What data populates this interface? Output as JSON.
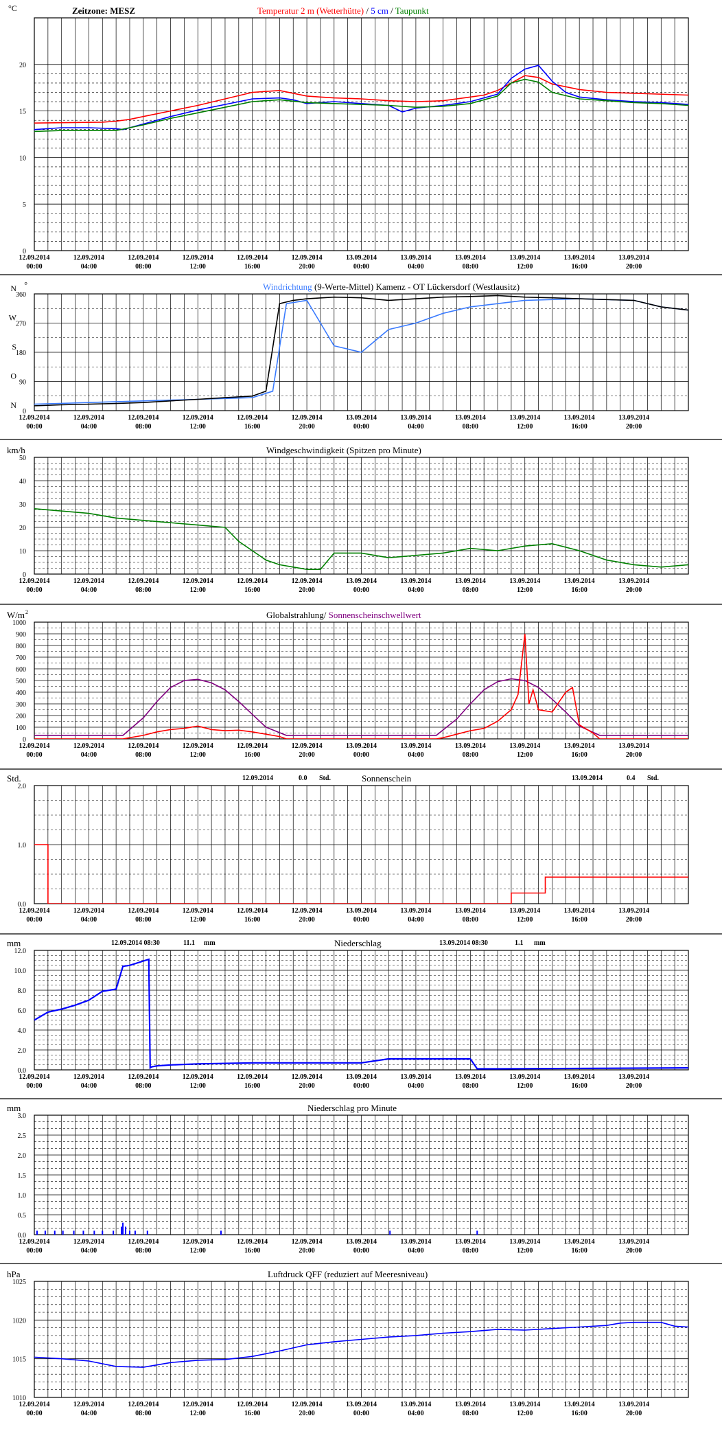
{
  "x_ticks": [
    [
      "12.09.2014",
      "00:00"
    ],
    [
      "12.09.2014",
      "04:00"
    ],
    [
      "12.09.2014",
      "08:00"
    ],
    [
      "12.09.2014",
      "12:00"
    ],
    [
      "12.09.2014",
      "16:00"
    ],
    [
      "12.09.2014",
      "20:00"
    ],
    [
      "13.09.2014",
      "00:00"
    ],
    [
      "13.09.2014",
      "04:00"
    ],
    [
      "13.09.2014",
      "08:00"
    ],
    [
      "13.09.2014",
      "12:00"
    ],
    [
      "13.09.2014",
      "16:00"
    ],
    [
      "13.09.2014",
      "20:00"
    ]
  ],
  "colors": {
    "red": "#ff0000",
    "blue": "#0000ff",
    "lightblue": "#3a7bff",
    "green": "#008000",
    "purple": "#800080",
    "black": "#000000",
    "frame": "#000000"
  },
  "chart_data": [
    {
      "id": "temp",
      "type": "line",
      "y_unit": "°C",
      "ylim": [
        0,
        25
      ],
      "yticks": [
        0,
        5,
        10,
        15,
        20
      ],
      "header": [
        {
          "text": "Zeitzone: MESZ",
          "color": "#000000"
        }
      ],
      "title_parts": [
        {
          "text": "Temperatur 2 m (Wetterhütte)",
          "color": "#ff0000"
        },
        {
          "text": "  /  ",
          "color": "#000000"
        },
        {
          "text": "5 cm",
          "color": "#0000ff"
        },
        {
          "text": " / ",
          "color": "#000000"
        },
        {
          "text": "Taupunkt",
          "color": "#008000"
        }
      ],
      "series": [
        {
          "name": "Temperatur 2 m (Wetterhütte)",
          "color": "#ff0000",
          "x": [
            0,
            5,
            6,
            7,
            8,
            10,
            12,
            14,
            16,
            18,
            20,
            21,
            22,
            24,
            26,
            28,
            30,
            32,
            33,
            34,
            36,
            37,
            38,
            40,
            42,
            48
          ],
          "y": [
            13.7,
            13.8,
            13.9,
            14.1,
            14.4,
            15.0,
            15.6,
            16.3,
            17.0,
            17.2,
            16.6,
            16.5,
            16.4,
            16.3,
            16.1,
            16.0,
            16.1,
            16.5,
            16.7,
            17.2,
            18.8,
            18.6,
            17.9,
            17.3,
            17.0,
            16.7
          ]
        },
        {
          "name": "5 cm",
          "color": "#0000ff",
          "x": [
            0,
            2,
            4,
            6,
            6.5,
            8,
            10,
            12,
            14,
            16,
            18,
            19,
            20,
            22,
            24,
            26,
            27,
            28,
            30,
            32,
            34,
            35,
            36,
            37,
            38,
            39,
            40,
            42,
            44,
            46,
            48
          ],
          "y": [
            13.0,
            13.2,
            13.2,
            13.1,
            13.0,
            13.6,
            14.4,
            15.1,
            15.7,
            16.3,
            16.4,
            16.2,
            15.8,
            16.0,
            15.8,
            15.6,
            14.9,
            15.3,
            15.6,
            16.0,
            16.8,
            18.5,
            19.5,
            19.9,
            18.2,
            17.0,
            16.5,
            16.2,
            16.0,
            15.9,
            15.7
          ]
        },
        {
          "name": "Taupunkt",
          "color": "#008000",
          "x": [
            0,
            2,
            4,
            6,
            8,
            10,
            12,
            14,
            16,
            18,
            20,
            22,
            24,
            26,
            28,
            30,
            32,
            34,
            35,
            36,
            37,
            38,
            40,
            42,
            44,
            46,
            48
          ],
          "y": [
            12.8,
            12.9,
            12.9,
            12.9,
            13.5,
            14.2,
            14.8,
            15.4,
            16.0,
            16.2,
            15.9,
            15.8,
            15.7,
            15.6,
            15.4,
            15.5,
            15.8,
            16.6,
            18.0,
            18.4,
            18.1,
            17.0,
            16.3,
            16.1,
            15.9,
            15.8,
            15.6
          ]
        }
      ]
    },
    {
      "id": "winddir",
      "type": "line",
      "y_unit": "N",
      "ylim": [
        0,
        360
      ],
      "yticks": [
        0,
        90,
        180,
        270,
        360
      ],
      "ytick_letters": [
        {
          "v": 0,
          "t": "N"
        },
        {
          "v": 90,
          "t": "O"
        },
        {
          "v": 180,
          "t": "S"
        },
        {
          "v": 270,
          "t": "W"
        },
        {
          "v": 360,
          "t": "N"
        }
      ],
      "title_parts": [
        {
          "text": "Windrichtung",
          "color": "#3a7bff"
        },
        {
          "text": " (9-Werte-Mittel)",
          "color": "#000000"
        },
        {
          "text": "       Kamenz - OT Lückersdorf (Westlausitz)",
          "color": "#000000"
        }
      ],
      "series": [
        {
          "name": "Windrichtung",
          "color": "#3a7bff",
          "x": [
            0,
            4,
            8,
            12,
            16,
            17.5,
            18.5,
            20,
            22,
            24,
            26,
            28,
            30,
            32,
            34,
            36,
            40,
            44,
            46,
            48
          ],
          "y": [
            20,
            25,
            30,
            35,
            40,
            60,
            330,
            340,
            200,
            180,
            250,
            270,
            300,
            320,
            330,
            340,
            345,
            340,
            320,
            310
          ]
        },
        {
          "name": "9-Werte-Mittel",
          "color": "#000000",
          "x": [
            0,
            2,
            4,
            6,
            8,
            10,
            12,
            14,
            16,
            17,
            18,
            19,
            20,
            22,
            24,
            26,
            28,
            30,
            32,
            34,
            36,
            38,
            40,
            44,
            46,
            48
          ],
          "y": [
            15,
            18,
            20,
            22,
            25,
            30,
            35,
            40,
            45,
            60,
            330,
            340,
            345,
            350,
            348,
            340,
            345,
            350,
            352,
            355,
            350,
            348,
            345,
            340,
            320,
            310
          ]
        }
      ]
    },
    {
      "id": "wind",
      "type": "line",
      "y_unit": "km/h",
      "ylim": [
        0,
        50
      ],
      "yticks": [
        0,
        10,
        20,
        30,
        40,
        50
      ],
      "title_parts": [
        {
          "text": "Windgeschwindigkeit (Spitzen pro Minute)",
          "color": "#000000"
        }
      ],
      "series": [
        {
          "name": "Windgeschwindigkeit",
          "color": "#008000",
          "x": [
            0,
            2,
            4,
            6,
            8,
            10,
            12,
            14,
            15,
            16,
            17,
            18,
            19,
            20,
            21,
            22,
            24,
            26,
            28,
            30,
            32,
            34,
            36,
            38,
            40,
            42,
            44,
            46,
            48
          ],
          "y": [
            28,
            27,
            26,
            24,
            23,
            22,
            21,
            20,
            14,
            10,
            6,
            4,
            3,
            2,
            2,
            9,
            9,
            7,
            8,
            9,
            11,
            10,
            12,
            13,
            10,
            6,
            4,
            3,
            4
          ]
        }
      ]
    },
    {
      "id": "radiation",
      "type": "line",
      "y_unit": "W/m²",
      "ylim": [
        0,
        1000
      ],
      "yticks": [
        0,
        100,
        200,
        300,
        400,
        500,
        600,
        700,
        800,
        900,
        1000
      ],
      "title_parts": [
        {
          "text": "Globalstrahlung/",
          "color": "#000000"
        },
        {
          "text": " Sonnenscheinschwellwert",
          "color": "#800080"
        }
      ],
      "series": [
        {
          "name": "Sonnenscheinschwellwert",
          "color": "#800080",
          "x": [
            0,
            6.5,
            8,
            9,
            10,
            11,
            12,
            13,
            14,
            15,
            16,
            17,
            18.5,
            29.5,
            31,
            32,
            33,
            34,
            35,
            36,
            37,
            38,
            39,
            40,
            41.5,
            48
          ],
          "y": [
            30,
            30,
            180,
            320,
            440,
            500,
            510,
            480,
            420,
            320,
            210,
            100,
            30,
            30,
            170,
            300,
            420,
            490,
            515,
            500,
            440,
            340,
            230,
            110,
            30,
            30
          ]
        },
        {
          "name": "Globalstrahlung",
          "color": "#ff0000",
          "x": [
            0,
            6.5,
            7,
            8,
            9,
            10,
            11,
            12,
            13,
            14,
            15,
            16,
            17,
            18,
            18.5,
            29.5,
            30,
            31,
            32,
            33,
            34,
            35,
            35.5,
            36,
            36.3,
            36.6,
            37,
            38,
            39,
            39.5,
            40,
            41,
            41.5,
            48
          ],
          "y": [
            0,
            0,
            10,
            30,
            60,
            80,
            90,
            110,
            80,
            70,
            75,
            60,
            40,
            20,
            0,
            0,
            10,
            40,
            70,
            90,
            150,
            250,
            380,
            900,
            300,
            420,
            250,
            230,
            400,
            440,
            120,
            50,
            0,
            0
          ]
        }
      ]
    },
    {
      "id": "sunshine",
      "type": "step",
      "y_unit": "Std.",
      "ylim": [
        0,
        2
      ],
      "yticks": [
        0,
        1,
        2
      ],
      "ytick_labels": [
        "0.0",
        "1.0",
        "2.0"
      ],
      "title_parts": [
        {
          "text": "Sonnenschein",
          "color": "#000000"
        }
      ],
      "annotations": [
        [
          "12.09.2014",
          "0.0",
          "Std."
        ],
        [
          "13.09.2014",
          "0.4",
          "Std."
        ]
      ],
      "series": [
        {
          "name": "Sonnenschein",
          "color": "#ff0000",
          "x": [
            0,
            1,
            1,
            35,
            35,
            37.5,
            37.5,
            48
          ],
          "y": [
            1.0,
            1.0,
            0,
            0,
            0.18,
            0.18,
            0.45,
            0.45
          ]
        }
      ]
    },
    {
      "id": "precip",
      "type": "step",
      "y_unit": "mm",
      "ylim": [
        0,
        12
      ],
      "yticks": [
        0,
        2,
        4,
        6,
        8,
        10,
        12
      ],
      "ytick_labels": [
        "0.0",
        "2.0",
        "4.0",
        "6.0",
        "8.0",
        "10.0",
        "12.0"
      ],
      "title_parts": [
        {
          "text": "Niederschlag",
          "color": "#000000"
        }
      ],
      "annotations": [
        [
          "12.09.2014 08:30",
          "11.1",
          "mm"
        ],
        [
          "13.09.2014 08:30",
          "1.1",
          "mm"
        ]
      ],
      "series": [
        {
          "name": "Niederschlag",
          "color": "#0000ff",
          "x": [
            0,
            1,
            2,
            3,
            4,
            5,
            6,
            6.5,
            7,
            8.4,
            8.5,
            8.6,
            9,
            10,
            12,
            16,
            18,
            20,
            24,
            26,
            28,
            32,
            32.5,
            34,
            48
          ],
          "y": [
            5.0,
            5.8,
            6.1,
            6.5,
            7.0,
            7.9,
            8.1,
            10.4,
            10.5,
            11.1,
            0.2,
            0.3,
            0.4,
            0.5,
            0.6,
            0.7,
            0.7,
            0.7,
            0.7,
            1.1,
            1.1,
            1.1,
            0.1,
            0.1,
            0.2
          ]
        }
      ]
    },
    {
      "id": "precipmin",
      "type": "bar",
      "y_unit": "mm",
      "ylim": [
        0,
        3
      ],
      "yticks": [
        0,
        0.5,
        1,
        1.5,
        2,
        2.5,
        3
      ],
      "ytick_labels": [
        "0.0",
        "0.5",
        "1.0",
        "1.5",
        "2.0",
        "2.5",
        "3.0"
      ],
      "title_parts": [
        {
          "text": "Niederschlag pro Minute",
          "color": "#000000"
        }
      ],
      "series": [
        {
          "name": "Niederschlag pro Minute",
          "color": "#0000ff",
          "x": [
            0.2,
            0.8,
            1.5,
            2.1,
            2.9,
            3.6,
            4.4,
            5.0,
            5.8,
            6.4,
            6.5,
            6.7,
            7.0,
            7.4,
            8.3,
            13.7,
            26.1,
            32.5
          ],
          "y": [
            0.1,
            0.1,
            0.1,
            0.1,
            0.1,
            0.1,
            0.1,
            0.1,
            0.1,
            0.2,
            0.3,
            0.2,
            0.1,
            0.1,
            0.1,
            0.1,
            0.1,
            0.1
          ]
        }
      ]
    },
    {
      "id": "pressure",
      "type": "line",
      "y_unit": "hPa",
      "ylim": [
        1010,
        1025
      ],
      "yticks": [
        1010,
        1015,
        1020,
        1025
      ],
      "title_parts": [
        {
          "text": "Luftdruck QFF (reduziert auf Meeresniveau)",
          "color": "#000000"
        }
      ],
      "series": [
        {
          "name": "Luftdruck QFF",
          "color": "#0000ff",
          "x": [
            0,
            2,
            4,
            6,
            8,
            10,
            12,
            14,
            16,
            18,
            20,
            22,
            24,
            26,
            28,
            30,
            32,
            34,
            36,
            38,
            40,
            42,
            43,
            44,
            46,
            47,
            48
          ],
          "y": [
            1015.2,
            1015.0,
            1014.7,
            1014.0,
            1013.9,
            1014.5,
            1014.8,
            1014.9,
            1015.3,
            1016.0,
            1016.8,
            1017.2,
            1017.5,
            1017.8,
            1018.0,
            1018.3,
            1018.5,
            1018.8,
            1018.7,
            1018.9,
            1019.1,
            1019.3,
            1019.6,
            1019.7,
            1019.7,
            1019.2,
            1019.1
          ]
        }
      ]
    }
  ]
}
